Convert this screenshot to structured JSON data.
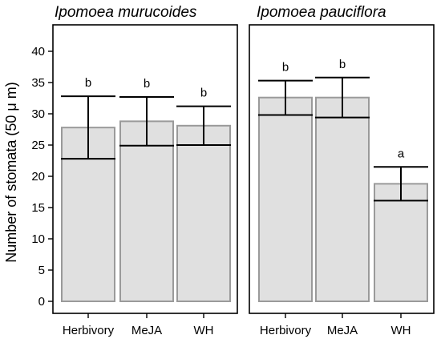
{
  "chart_data": {
    "type": "bar",
    "ylabel": "Number of stomata (50  μ m)",
    "ylim": [
      0,
      44
    ],
    "yticks": [
      0,
      5,
      10,
      15,
      20,
      25,
      30,
      35,
      40
    ],
    "grid": false,
    "panels": [
      {
        "title": "Ipomoea murucoides",
        "categories": [
          "Herbivory",
          "MeJA",
          "WH"
        ],
        "values": [
          27.8,
          28.8,
          28.1
        ],
        "error_low": [
          22.8,
          24.9,
          25.0
        ],
        "error_high": [
          32.8,
          32.7,
          31.2
        ],
        "significance": [
          "b",
          "b",
          "b"
        ]
      },
      {
        "title": "Ipomoea pauciflora",
        "categories": [
          "Herbivory",
          "MeJA",
          "WH"
        ],
        "values": [
          32.6,
          32.6,
          18.8
        ],
        "error_low": [
          29.8,
          29.4,
          16.1
        ],
        "error_high": [
          35.3,
          35.8,
          21.5
        ],
        "significance": [
          "b",
          "b",
          "a"
        ]
      }
    ]
  }
}
